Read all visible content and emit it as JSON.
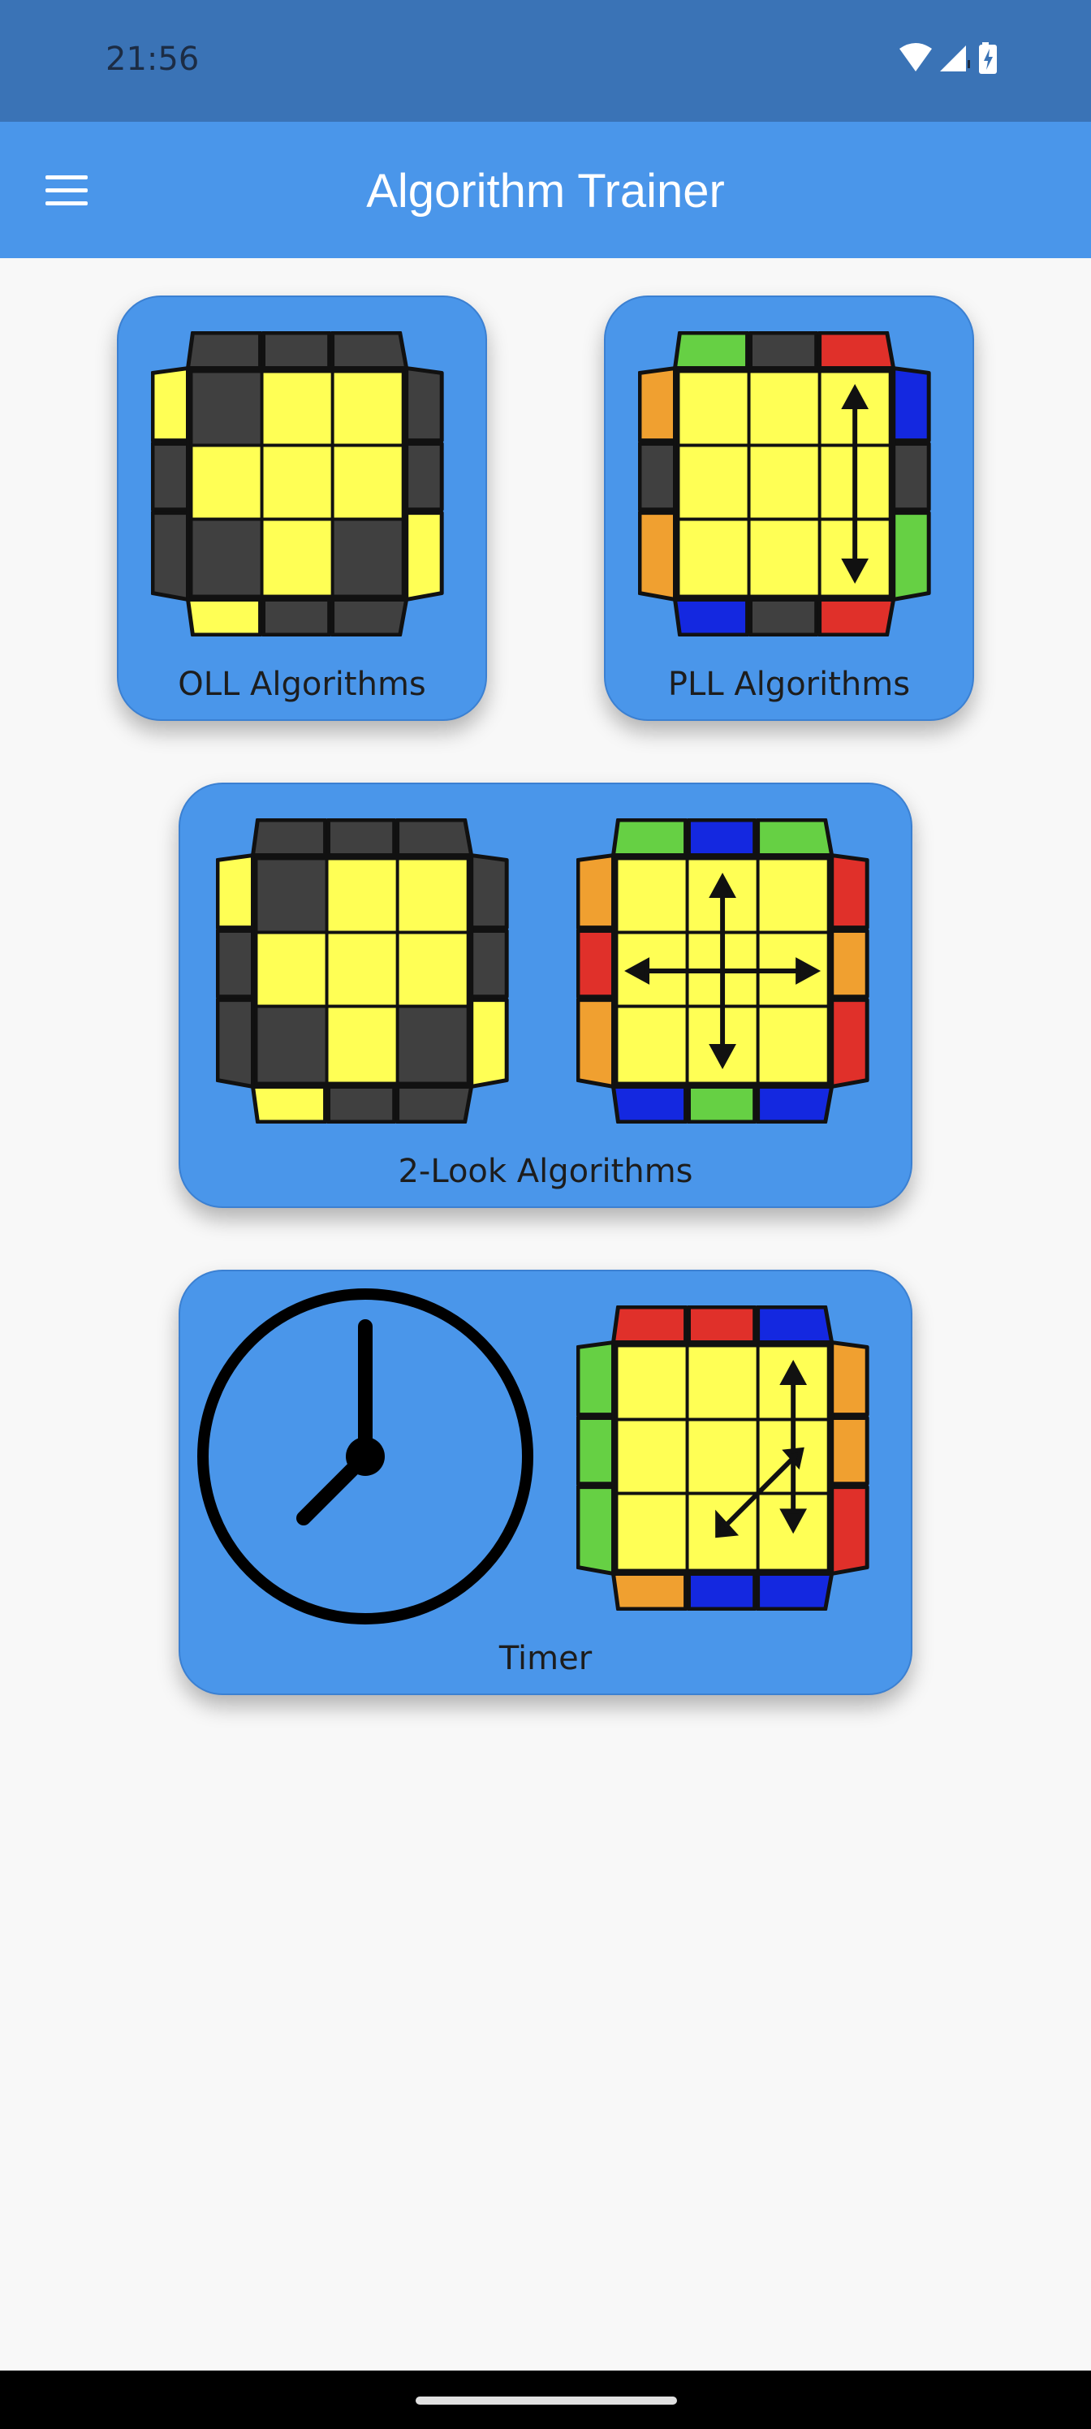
{
  "status_bar": {
    "time": "21:56",
    "icons": [
      "wifi-icon",
      "signal-icon",
      "battery-charging-icon"
    ]
  },
  "app_bar": {
    "title": "Algorithm Trainer",
    "menu_icon": "hamburger-menu-icon"
  },
  "colors": {
    "status_bar": "#3a73b6",
    "app_bar": "#4a96ea",
    "card": "#4a96ea",
    "background": "#f8f8f8",
    "cube_yellow": "#ffff55",
    "cube_dark": "#404040",
    "cube_green": "#66d044",
    "cube_red": "#e0302a",
    "cube_blue": "#1428e0",
    "cube_orange": "#f0a030"
  },
  "cards": [
    {
      "label": "OLL Algorithms",
      "illustration": [
        "oll-cube-icon"
      ]
    },
    {
      "label": "PLL Algorithms",
      "illustration": [
        "pll-cube-icon"
      ]
    },
    {
      "label": "2-Look Algorithms",
      "illustration": [
        "oll-cube-icon",
        "pll-cross-cube-icon"
      ]
    },
    {
      "label": "Timer",
      "illustration": [
        "clock-icon",
        "pll-cube-icon"
      ]
    }
  ]
}
